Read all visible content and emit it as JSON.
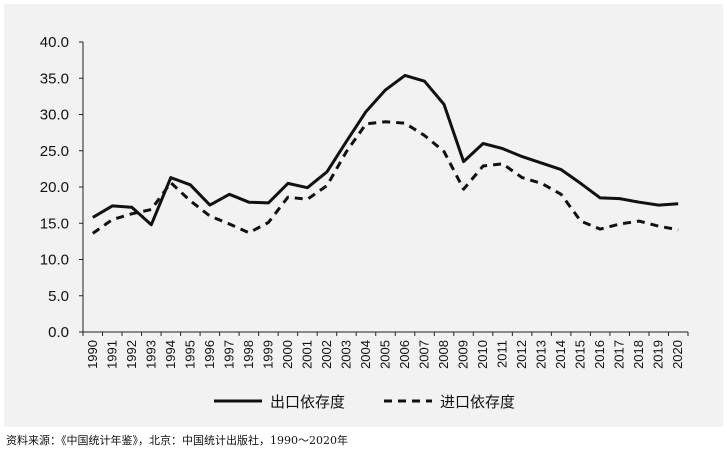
{
  "chart_data": {
    "type": "line",
    "title": "",
    "xlabel": "",
    "ylabel": "",
    "ylim": [
      0,
      40
    ],
    "yticks": [
      "0.0",
      "5.0",
      "10.0",
      "15.0",
      "20.0",
      "25.0",
      "30.0",
      "35.0",
      "40.0"
    ],
    "x": [
      "1990",
      "1991",
      "1992",
      "1993",
      "1994",
      "1995",
      "1996",
      "1997",
      "1998",
      "1999",
      "2000",
      "2001",
      "2002",
      "2003",
      "2004",
      "2005",
      "2006",
      "2007",
      "2008",
      "2009",
      "2010",
      "2011",
      "2012",
      "2013",
      "2014",
      "2015",
      "2016",
      "2017",
      "2018",
      "2019",
      "2020"
    ],
    "series": [
      {
        "name": "出口依存度",
        "style": "solid",
        "color": "#111111",
        "values": [
          15.8,
          17.4,
          17.2,
          14.8,
          21.3,
          20.3,
          17.5,
          19.0,
          17.9,
          17.8,
          20.5,
          19.9,
          22.1,
          26.3,
          30.4,
          33.4,
          35.4,
          34.6,
          31.4,
          23.5,
          26.0,
          25.3,
          24.2,
          23.3,
          22.4,
          20.5,
          18.5,
          18.4,
          17.9,
          17.5,
          17.7
        ]
      },
      {
        "name": "进口依存度",
        "style": "dashed",
        "color": "#111111",
        "values": [
          13.6,
          15.5,
          16.3,
          16.9,
          20.6,
          18.1,
          16.0,
          14.9,
          13.7,
          15.1,
          18.6,
          18.3,
          20.2,
          24.9,
          28.7,
          29.0,
          28.8,
          27.1,
          24.9,
          19.7,
          22.9,
          23.2,
          21.3,
          20.5,
          19.0,
          15.3,
          14.2,
          14.9,
          15.3,
          14.6,
          14.1
        ]
      }
    ],
    "legend": "bottom-center",
    "grid": false
  },
  "source_note": "资料来源：《中国统计年鉴》，北京：中国统计出版社，1990～2020年"
}
